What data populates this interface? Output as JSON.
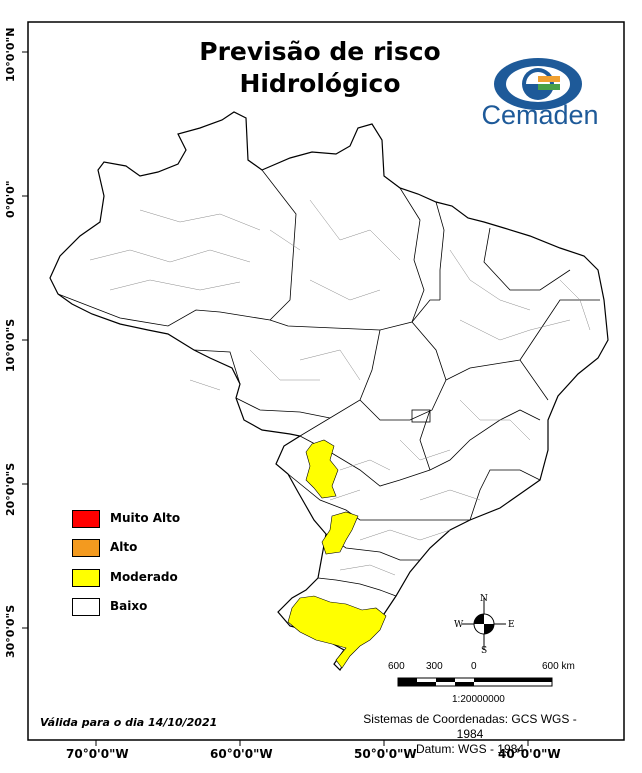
{
  "title": {
    "line1": "Previsão de risco",
    "line2": "Hidrológico"
  },
  "logo": {
    "name": "Cemaden",
    "colors": {
      "blue": "#1e5a99",
      "green": "#48a048",
      "orange": "#f0a030"
    }
  },
  "legend": [
    {
      "label": "Muito Alto",
      "color": "#ff0000"
    },
    {
      "label": "Alto",
      "color": "#f39a1f"
    },
    {
      "label": "Moderado",
      "color": "#ffff00"
    },
    {
      "label": "Baixo",
      "color": "#ffffff"
    }
  ],
  "validity": "Válida para o dia 14/10/2021",
  "coordinate_system": {
    "line1": "Sistemas de Coordenadas: GCS WGS - 1984",
    "line2": "Datum: WGS - 1984"
  },
  "scale_bar": {
    "labels": [
      "600",
      "300",
      "0",
      "600 km"
    ],
    "ratio": "1:20000000"
  },
  "compass": {
    "north": "N",
    "south": "S",
    "east": "E",
    "west": "W"
  },
  "graticule": {
    "longitudes": [
      "70°0'0\"W",
      "60°0'0\"W",
      "50°0'0\"W",
      "40°0'0\"W"
    ],
    "latitudes": [
      "10°0'0\"N",
      "0°0'0\"",
      "10°0'0\"S",
      "20°0'0\"S",
      "30°0'0\"S"
    ]
  },
  "risk_areas": [
    {
      "region": "Mato Grosso do Sul north",
      "level": "Moderado"
    },
    {
      "region": "Mato Grosso do Sul south / Paraná border",
      "level": "Moderado"
    },
    {
      "region": "Rio Grande do Sul",
      "level": "Moderado"
    }
  ]
}
